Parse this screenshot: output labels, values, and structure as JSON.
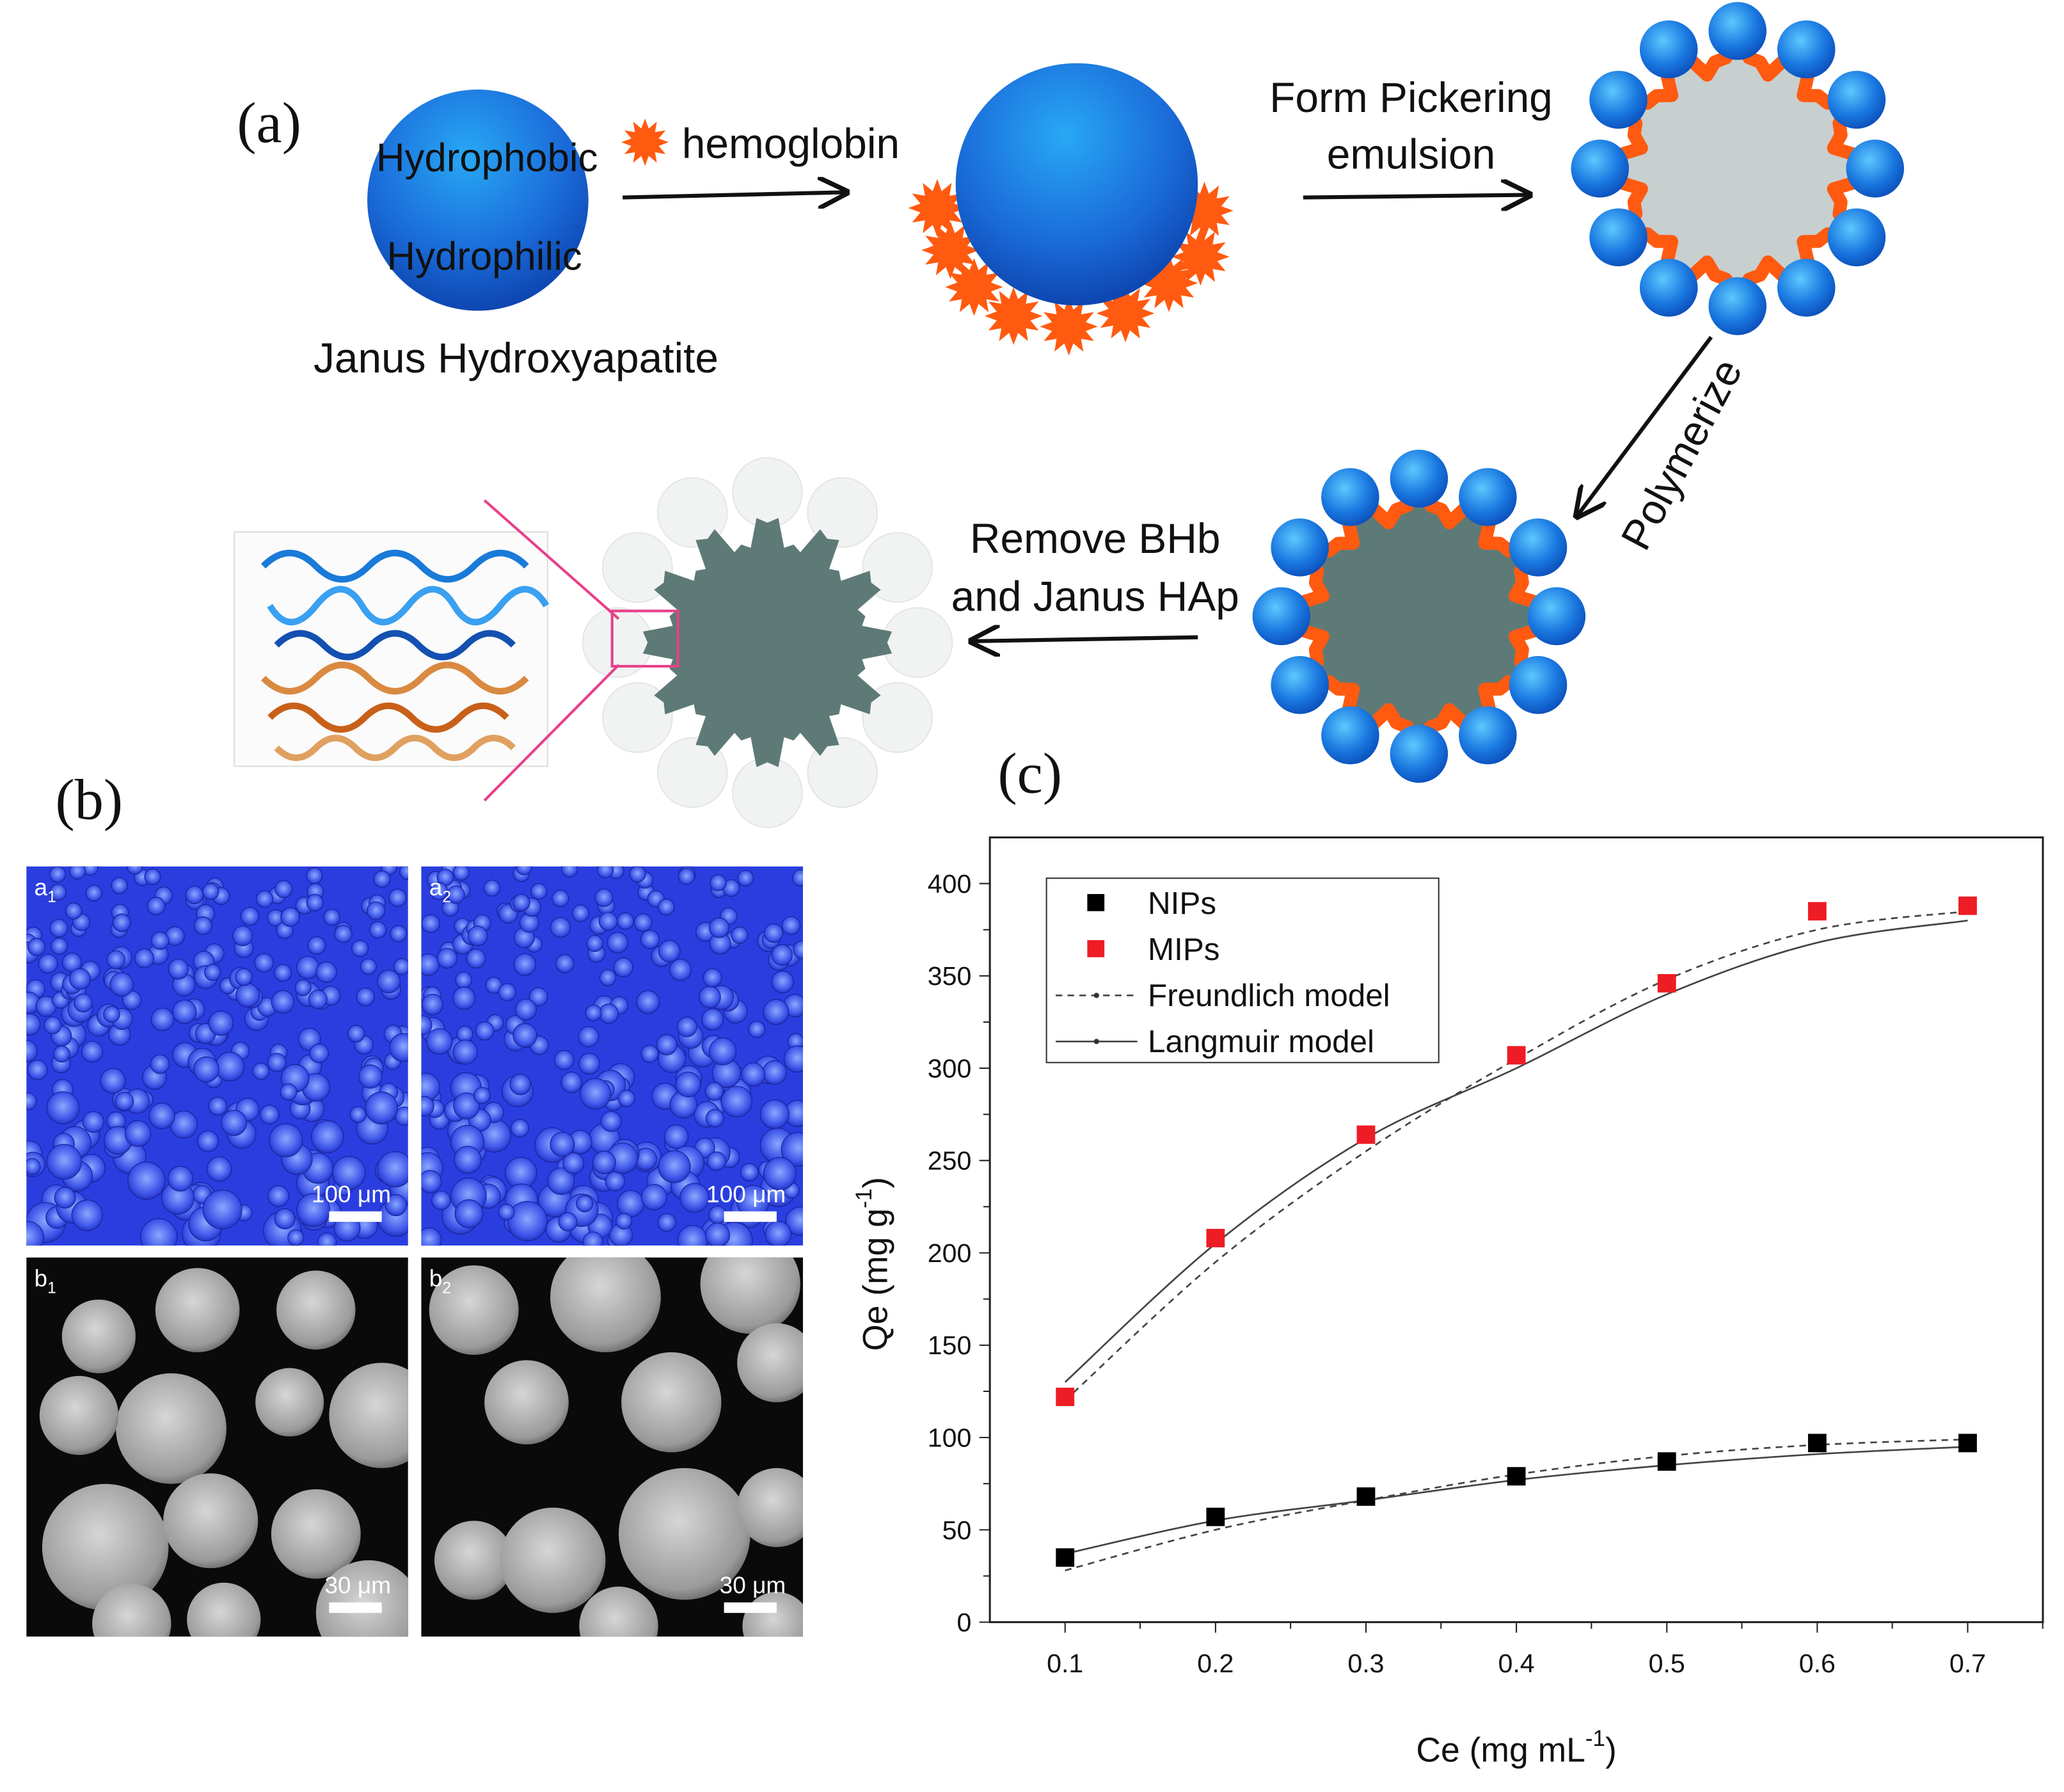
{
  "panel_a": {
    "label": "(a)",
    "janus_top": "Hydrophobic",
    "janus_bottom": "Hydrophilic",
    "janus_name": "Janus Hydroxyapatite",
    "step1": "hemoglobin",
    "step2_line1": "Form Pickering",
    "step2_line2": "emulsion",
    "step3": "Polymerize",
    "step4_line1": "Remove BHb",
    "step4_line2": "and Janus HAp",
    "colors": {
      "sphere": "#1e6fd6",
      "hemoglobin": "#ff5a10",
      "core_light": "#c8cfcf",
      "core_dark": "#5e7a77",
      "highlight_box": "#e8408a"
    }
  },
  "panel_b": {
    "label": "(b)",
    "images": [
      {
        "tag": "a",
        "sub": "1",
        "scale": "100 μm"
      },
      {
        "tag": "a",
        "sub": "2",
        "scale": "100 μm"
      },
      {
        "tag": "b",
        "sub": "1",
        "scale": "30 μm"
      },
      {
        "tag": "b",
        "sub": "2",
        "scale": "30 μm"
      }
    ]
  },
  "panel_c": {
    "label": "(c)"
  },
  "chart_data": {
    "type": "scatter",
    "xlabel": "Ce (mg mL",
    "xlabel_sup": "-1",
    "xlabel_end": ")",
    "ylabel": "Qe (mg g",
    "ylabel_sup": "-1",
    "ylabel_end": ")",
    "xlim": [
      0.05,
      0.75
    ],
    "ylim": [
      0,
      425
    ],
    "xticks": [
      "0.1",
      "0.2",
      "0.3",
      "0.4",
      "0.5",
      "0.6",
      "0.7"
    ],
    "yticks": [
      "0",
      "50",
      "100",
      "150",
      "200",
      "250",
      "300",
      "350",
      "400"
    ],
    "grid": false,
    "legend_position": "top-left",
    "x": [
      0.1,
      0.2,
      0.3,
      0.4,
      0.5,
      0.6,
      0.7
    ],
    "series": [
      {
        "name": "NIPs",
        "marker": "square",
        "color": "#000000",
        "values": [
          35,
          57,
          68,
          79,
          87,
          97,
          97
        ]
      },
      {
        "name": "MIPs",
        "marker": "square",
        "color": "#ee1c25",
        "values": [
          122,
          208,
          264,
          307,
          346,
          385,
          388
        ]
      }
    ],
    "fits": [
      {
        "name": "Freundlich model",
        "style": "dashed",
        "curves": [
          [
            28,
            50,
            66,
            80,
            90,
            96,
            99
          ],
          [
            120,
            195,
            255,
            305,
            348,
            375,
            385
          ]
        ]
      },
      {
        "name": "Langmuir model",
        "style": "solid",
        "curves": [
          [
            37,
            55,
            66,
            77,
            85,
            91,
            95
          ],
          [
            130,
            205,
            262,
            300,
            340,
            368,
            380
          ]
        ]
      }
    ]
  }
}
